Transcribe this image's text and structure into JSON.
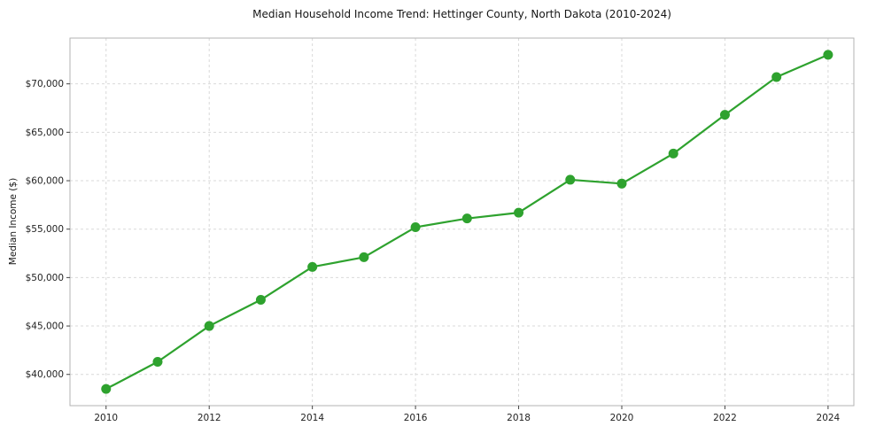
{
  "chart": {
    "title": "Median Household Income Trend: Hettinger County, North Dakota (2010-2024)",
    "ylabel": "Median Income ($)"
  },
  "chart_data": {
    "type": "line",
    "title": "Median Household Income Trend: Hettinger County, North Dakota (2010-2024)",
    "xlabel": "",
    "ylabel": "Median Income ($)",
    "x": [
      2010,
      2011,
      2012,
      2013,
      2014,
      2015,
      2016,
      2017,
      2018,
      2019,
      2020,
      2021,
      2022,
      2023,
      2024
    ],
    "values": [
      38500,
      41300,
      45000,
      47700,
      51100,
      52100,
      55200,
      56100,
      56700,
      60100,
      59700,
      62800,
      66800,
      70700,
      73000
    ],
    "xlim": [
      2009.3,
      2024.5
    ],
    "ylim": [
      36775,
      74725
    ],
    "xticks": {
      "values": [
        2010,
        2012,
        2014,
        2016,
        2018,
        2020,
        2022,
        2024
      ],
      "labels": [
        "2010",
        "2012",
        "2014",
        "2016",
        "2018",
        "2020",
        "2022",
        "2024"
      ]
    },
    "yticks": {
      "values": [
        40000,
        45000,
        50000,
        55000,
        60000,
        65000,
        70000
      ],
      "labels": [
        "$40,000",
        "$45,000",
        "$50,000",
        "$55,000",
        "$60,000",
        "$65,000",
        "$70,000"
      ]
    },
    "grid": true,
    "grid_style": "dashed",
    "legend": false,
    "line_color": "#2ea22e",
    "marker": "circle",
    "grid_color": "#d9d9d9",
    "spine_color": "#b3b3b3",
    "tick_label_color": "#222222"
  }
}
